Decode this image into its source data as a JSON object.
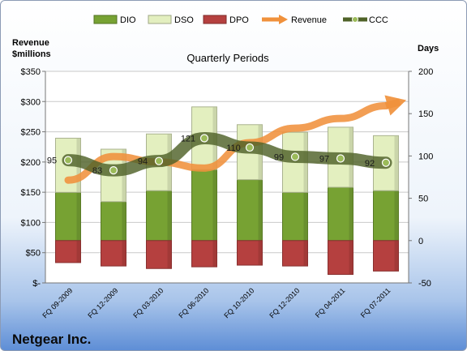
{
  "company": "Netgear Inc.",
  "chart_data": {
    "type": "bar",
    "title": "Quarterly Periods",
    "left_axis": {
      "label": "Revenue $millions",
      "label_lines": [
        "Revenue",
        "$millions"
      ],
      "range": [
        0,
        350
      ],
      "ticks": [
        "$-",
        "$50",
        "$100",
        "$150",
        "$200",
        "$250",
        "$300",
        "$350"
      ]
    },
    "right_axis": {
      "label": "Days",
      "range": [
        -50,
        200
      ],
      "ticks": [
        "-50",
        "0",
        "50",
        "100",
        "150",
        "200"
      ]
    },
    "categories": [
      "FQ 09-2009",
      "FQ 12-2009",
      "FQ 03-2010",
      "FQ 06-2010",
      "FQ 10-2010",
      "FQ 12-2010",
      "FQ 04-2011",
      "FQ 07-2011"
    ],
    "series": [
      {
        "name": "DIO",
        "axis": "days",
        "style": "stacked-bar",
        "color": "#77a233",
        "values": [
          57,
          46,
          59,
          84,
          72,
          57,
          63,
          59
        ]
      },
      {
        "name": "DSO",
        "axis": "days",
        "style": "stacked-bar",
        "color": "#e3efbf",
        "values": [
          64,
          62,
          67,
          74,
          65,
          71,
          71,
          65
        ]
      },
      {
        "name": "DPO",
        "axis": "days",
        "style": "negative-bar",
        "color": "#b5403f",
        "values": [
          -26,
          -30,
          -33,
          -31,
          -29,
          -30,
          -40,
          -36
        ]
      },
      {
        "name": "Revenue",
        "axis": "revenue",
        "style": "trend-arrow",
        "color": "#f0913c",
        "values": [
          170,
          209,
          200,
          190,
          232,
          256,
          272,
          293
        ]
      },
      {
        "name": "CCC",
        "axis": "days",
        "style": "line-markers",
        "color": "#4f6228",
        "values": [
          95,
          83,
          94,
          121,
          110,
          99,
          97,
          92
        ]
      }
    ],
    "ccc_labels": [
      "95",
      "83",
      "94",
      "121",
      "110",
      "99",
      "97",
      "92"
    ],
    "grid": true,
    "legend": "top"
  }
}
